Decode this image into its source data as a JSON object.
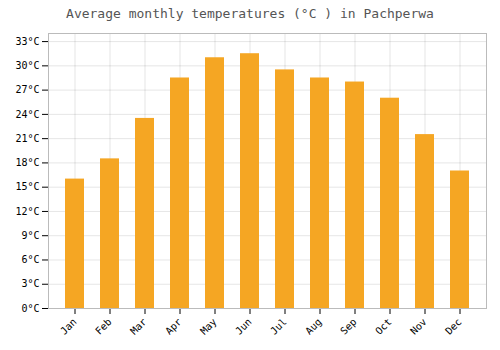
{
  "chart_data": {
    "type": "bar",
    "title": "Average monthly temperatures (°C ) in Pachperwa",
    "categories": [
      "Jan",
      "Feb",
      "Mar",
      "Apr",
      "May",
      "Jun",
      "Jul",
      "Aug",
      "Sep",
      "Oct",
      "Nov",
      "Dec"
    ],
    "values": [
      16,
      18.5,
      23.5,
      28.5,
      31,
      31.5,
      29.5,
      28.5,
      28,
      26,
      21.5,
      17
    ],
    "color": "#F5A623",
    "ylim": [
      0,
      34
    ],
    "yticks": [
      {
        "value": 0,
        "label": "0°C"
      },
      {
        "value": 3,
        "label": "3°C"
      },
      {
        "value": 6,
        "label": "6°C"
      },
      {
        "value": 9,
        "label": "9°C"
      },
      {
        "value": 12,
        "label": "12°C"
      },
      {
        "value": 15,
        "label": "15°C"
      },
      {
        "value": 18,
        "label": "18°C"
      },
      {
        "value": 21,
        "label": "21°C"
      },
      {
        "value": 24,
        "label": "24°C"
      },
      {
        "value": 27,
        "label": "27°C"
      },
      {
        "value": 30,
        "label": "30°C"
      },
      {
        "value": 33,
        "label": "33°C"
      }
    ],
    "grid": true
  }
}
